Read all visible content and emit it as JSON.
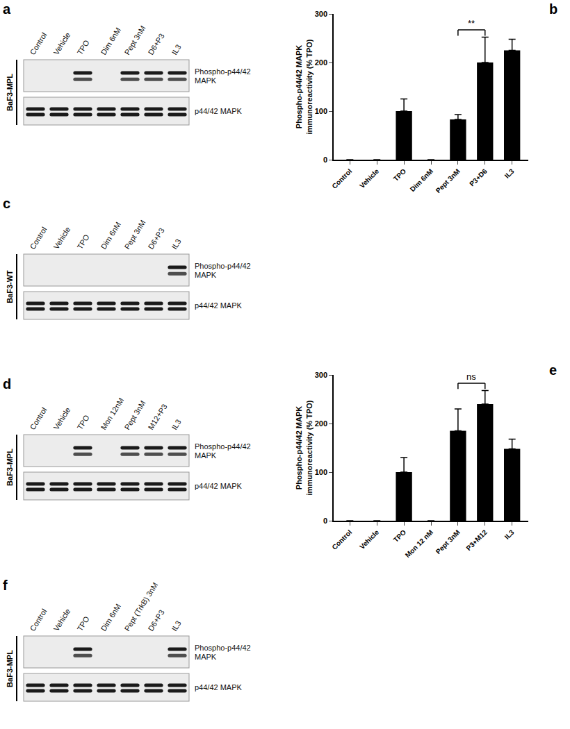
{
  "blots": [
    {
      "panel": "a",
      "cell_line": "BaF3-MPL",
      "lanes": [
        "Control",
        "Vehicle",
        "TPO",
        "Dim 6nM",
        "Pept 3nM",
        "D6+P3",
        "IL3"
      ],
      "rows": [
        {
          "name": [
            "Phospho-p44/42",
            "MAPK"
          ],
          "bands": [
            false,
            false,
            true,
            false,
            true,
            true,
            true
          ]
        },
        {
          "name": [
            "p44/42 MAPK"
          ],
          "bands": [
            true,
            true,
            true,
            true,
            true,
            true,
            true
          ]
        }
      ]
    },
    {
      "panel": "c",
      "cell_line": "BaF3-WT",
      "lanes": [
        "Control",
        "Vehicle",
        "TPO",
        "Dim 6nM",
        "Pept 3nM",
        "D6+P3",
        "IL3"
      ],
      "rows": [
        {
          "name": [
            "Phospho-p44/42",
            "MAPK"
          ],
          "bands": [
            false,
            false,
            false,
            false,
            false,
            false,
            true
          ]
        },
        {
          "name": [
            "p44/42 MAPK"
          ],
          "bands": [
            true,
            true,
            true,
            true,
            true,
            true,
            true
          ]
        }
      ]
    },
    {
      "panel": "d",
      "cell_line": "BaF3-MPL",
      "lanes": [
        "Control",
        "Vehicle",
        "TPO",
        "Mon 12nM",
        "Pept 3nM",
        "M12+P3",
        "IL3"
      ],
      "rows": [
        {
          "name": [
            "Phospho-p44/42",
            "MAPK"
          ],
          "bands": [
            false,
            false,
            true,
            false,
            true,
            true,
            true
          ]
        },
        {
          "name": [
            "p44/42 MAPK"
          ],
          "bands": [
            true,
            true,
            true,
            true,
            true,
            true,
            true
          ]
        }
      ]
    },
    {
      "panel": "f",
      "cell_line": "BaF3-MPL",
      "lanes": [
        "Control",
        "Vehicle",
        "TPO",
        "Dim 6nM",
        "Pept (TrkB) 3nM",
        "D6+P3",
        "IL3"
      ],
      "rows": [
        {
          "name": [
            "Phospho-p44/42",
            "MAPK"
          ],
          "bands": [
            false,
            false,
            true,
            false,
            false,
            false,
            true
          ]
        },
        {
          "name": [
            "p44/42 MAPK"
          ],
          "bands": [
            true,
            true,
            true,
            true,
            true,
            true,
            true
          ]
        }
      ]
    }
  ],
  "chart_data": [
    {
      "panel": "b",
      "type": "bar",
      "categories": [
        "Control",
        "Vehicle",
        "TPO",
        "Dim 6nM",
        "Pept 3nM",
        "P3+D6",
        "IL3"
      ],
      "values": [
        0,
        0,
        100,
        0,
        83,
        200,
        225
      ],
      "errors": [
        0,
        0,
        25,
        0,
        10,
        52,
        23
      ],
      "color": "#000000",
      "y_label": [
        "Phospho-p44/42 MAPK",
        "immunoreactivity (% TPO)"
      ],
      "ylim": [
        0,
        300
      ],
      "yticks": [
        0,
        100,
        200,
        300
      ],
      "annotations": [
        {
          "text": "**",
          "from": "Pept 3nM",
          "to": "P3+D6"
        }
      ]
    },
    {
      "panel": "e",
      "type": "bar",
      "categories": [
        "Control",
        "Vehicle",
        "TPO",
        "Mon 12 nM",
        "Pept 3nM",
        "P3+M12",
        "IL3"
      ],
      "values": [
        0,
        0,
        100,
        0,
        185,
        240,
        148
      ],
      "errors": [
        0,
        0,
        30,
        0,
        45,
        28,
        20
      ],
      "color": "#000000",
      "y_label": [
        "Phospho-p44/42 MAPK",
        "immunoreactivity (% TPO)"
      ],
      "ylim": [
        0,
        300
      ],
      "yticks": [
        0,
        100,
        200,
        300
      ],
      "annotations": [
        {
          "text": "ns",
          "from": "Pept 3nM",
          "to": "P3+M12"
        }
      ]
    }
  ]
}
